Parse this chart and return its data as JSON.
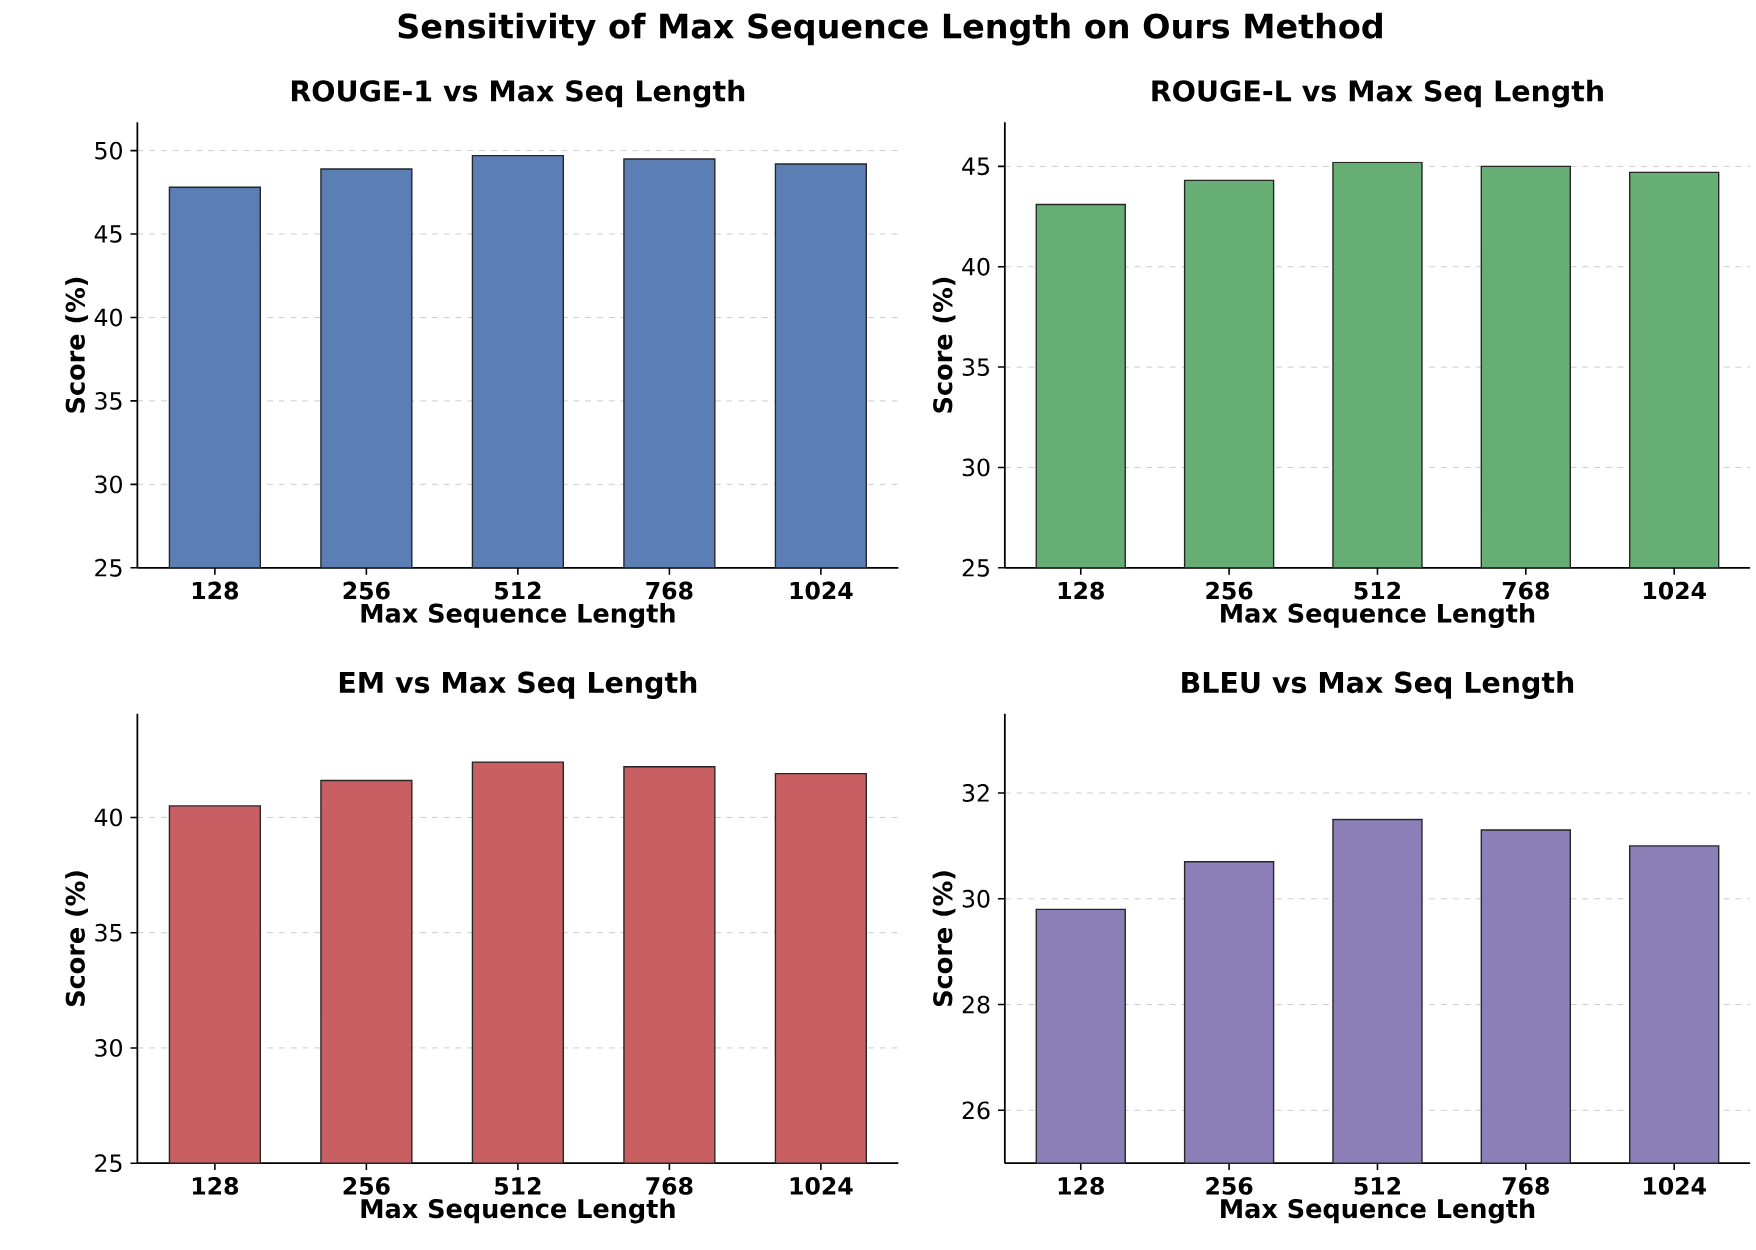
{
  "chart_data": [
    {
      "type": "bar",
      "title": "ROUGE-1 vs Max Seq Length",
      "xlabel": "Max Sequence Length",
      "ylabel": "Score (%)",
      "annotations": [
        "Sensitivity of Max Sequence Length on Ours Method"
      ],
      "categories": [
        "128",
        "256",
        "512",
        "768",
        "1024"
      ],
      "values": [
        47.8,
        48.9,
        49.7,
        49.5,
        49.2
      ],
      "color": "#5b7fb5",
      "ylim": [
        25,
        51.7
      ],
      "yticks": [
        25,
        30,
        35,
        40,
        45,
        50
      ],
      "grid": "y"
    },
    {
      "type": "bar",
      "title": "ROUGE-L vs Max Seq Length",
      "xlabel": "Max Sequence Length",
      "ylabel": "Score (%)",
      "categories": [
        "128",
        "256",
        "512",
        "768",
        "1024"
      ],
      "values": [
        43.1,
        44.3,
        45.2,
        45.0,
        44.7
      ],
      "color": "#66ae74",
      "ylim": [
        25,
        47.2
      ],
      "yticks": [
        25,
        30,
        35,
        40,
        45
      ],
      "grid": "y"
    },
    {
      "type": "bar",
      "title": "EM vs Max Seq Length",
      "xlabel": "Max Sequence Length",
      "ylabel": "Score (%)",
      "categories": [
        "128",
        "256",
        "512",
        "768",
        "1024"
      ],
      "values": [
        40.5,
        41.6,
        42.4,
        42.2,
        41.9
      ],
      "color": "#c85f63",
      "ylim": [
        25,
        44.5
      ],
      "yticks": [
        25,
        30,
        35,
        40
      ],
      "grid": "y"
    },
    {
      "type": "bar",
      "title": "BLEU vs Max Seq Length",
      "xlabel": "Max Sequence Length",
      "ylabel": "Score (%)",
      "categories": [
        "128",
        "256",
        "512",
        "768",
        "1024"
      ],
      "values": [
        29.8,
        30.7,
        31.5,
        31.3,
        31.0
      ],
      "color": "#8c7fb8",
      "ylim": [
        25,
        33.5
      ],
      "yticks": [
        26,
        28,
        30,
        32
      ],
      "grid": "y"
    }
  ]
}
